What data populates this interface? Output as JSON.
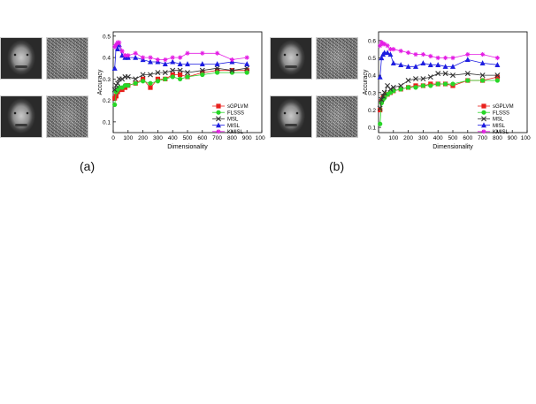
{
  "panels": [
    {
      "label": "(a)"
    },
    {
      "label": "(b)"
    }
  ],
  "colors": {
    "sGPLVM": "#e8201c",
    "FLSSS": "#27d627",
    "MSL": "#333333",
    "MISL": "#1d1de0",
    "KMISL": "#e41ee4"
  },
  "chart_data": [
    {
      "type": "line",
      "xlabel": "Dimensionality",
      "ylabel": "Accuracy",
      "xlim": [
        0,
        1000
      ],
      "ylim": [
        0.05,
        0.52
      ],
      "xticks": [
        0,
        100,
        200,
        300,
        400,
        500,
        600,
        700,
        800,
        900,
        1000
      ],
      "yticks": [
        0.1,
        0.2,
        0.3,
        0.4,
        0.5
      ],
      "legend_position": "right-bottom",
      "series": [
        {
          "name": "sGPLVM",
          "marker": "square",
          "x": [
            10,
            20,
            30,
            40,
            60,
            80,
            100,
            150,
            200,
            250,
            300,
            350,
            400,
            450,
            500,
            600,
            700,
            800,
            900
          ],
          "y": [
            0.21,
            0.22,
            0.24,
            0.25,
            0.25,
            0.26,
            0.27,
            0.28,
            0.3,
            0.26,
            0.3,
            0.3,
            0.32,
            0.32,
            0.31,
            0.33,
            0.34,
            0.34,
            0.34
          ]
        },
        {
          "name": "FLSSS",
          "marker": "circle",
          "x": [
            10,
            20,
            30,
            40,
            60,
            80,
            100,
            150,
            200,
            250,
            300,
            350,
            400,
            450,
            500,
            600,
            700,
            800,
            900
          ],
          "y": [
            0.18,
            0.24,
            0.25,
            0.26,
            0.26,
            0.27,
            0.27,
            0.28,
            0.29,
            0.28,
            0.29,
            0.3,
            0.31,
            0.3,
            0.31,
            0.32,
            0.33,
            0.33,
            0.33
          ]
        },
        {
          "name": "MSL",
          "marker": "x",
          "x": [
            10,
            20,
            30,
            40,
            60,
            80,
            100,
            150,
            200,
            250,
            300,
            350,
            400,
            450,
            500,
            600,
            700,
            800,
            900
          ],
          "y": [
            0.25,
            0.27,
            0.28,
            0.3,
            0.3,
            0.31,
            0.31,
            0.3,
            0.32,
            0.32,
            0.33,
            0.33,
            0.34,
            0.34,
            0.33,
            0.34,
            0.35,
            0.34,
            0.35
          ]
        },
        {
          "name": "MISL",
          "marker": "triangle",
          "x": [
            10,
            20,
            30,
            40,
            60,
            80,
            100,
            150,
            200,
            250,
            300,
            350,
            400,
            450,
            500,
            600,
            700,
            800,
            900
          ],
          "y": [
            0.35,
            0.46,
            0.44,
            0.46,
            0.41,
            0.4,
            0.4,
            0.4,
            0.39,
            0.38,
            0.38,
            0.37,
            0.38,
            0.37,
            0.37,
            0.37,
            0.37,
            0.38,
            0.37
          ]
        },
        {
          "name": "KMISL",
          "marker": "star",
          "x": [
            10,
            20,
            30,
            40,
            60,
            80,
            100,
            150,
            200,
            250,
            300,
            350,
            400,
            450,
            500,
            600,
            700,
            800,
            900
          ],
          "y": [
            0.45,
            0.46,
            0.47,
            0.47,
            0.43,
            0.41,
            0.41,
            0.42,
            0.4,
            0.4,
            0.39,
            0.39,
            0.4,
            0.4,
            0.42,
            0.42,
            0.42,
            0.39,
            0.4
          ]
        }
      ]
    },
    {
      "type": "line",
      "xlabel": "Dimensionality",
      "ylabel": "Accuracy",
      "xlim": [
        0,
        1000
      ],
      "ylim": [
        0.07,
        0.65
      ],
      "xticks": [
        0,
        100,
        200,
        300,
        400,
        500,
        600,
        700,
        800,
        900,
        1000
      ],
      "yticks": [
        0.1,
        0.2,
        0.3,
        0.4,
        0.5,
        0.6
      ],
      "legend_position": "right-bottom",
      "series": [
        {
          "name": "sGPLVM",
          "marker": "square",
          "x": [
            10,
            20,
            30,
            40,
            60,
            80,
            100,
            150,
            200,
            250,
            300,
            350,
            400,
            450,
            500,
            600,
            700,
            800
          ],
          "y": [
            0.2,
            0.25,
            0.27,
            0.28,
            0.29,
            0.3,
            0.31,
            0.32,
            0.33,
            0.34,
            0.34,
            0.35,
            0.35,
            0.35,
            0.34,
            0.37,
            0.37,
            0.39
          ]
        },
        {
          "name": "FLSSS",
          "marker": "circle",
          "x": [
            10,
            20,
            30,
            40,
            60,
            80,
            100,
            150,
            200,
            250,
            300,
            350,
            400,
            450,
            500,
            600,
            700,
            800
          ],
          "y": [
            0.12,
            0.24,
            0.26,
            0.27,
            0.29,
            0.3,
            0.31,
            0.32,
            0.33,
            0.33,
            0.34,
            0.34,
            0.35,
            0.35,
            0.35,
            0.37,
            0.37,
            0.37
          ]
        },
        {
          "name": "MSL",
          "marker": "x",
          "x": [
            10,
            20,
            30,
            40,
            60,
            80,
            100,
            150,
            200,
            250,
            300,
            350,
            400,
            450,
            500,
            600,
            700,
            800
          ],
          "y": [
            0.21,
            0.26,
            0.28,
            0.3,
            0.34,
            0.32,
            0.33,
            0.34,
            0.37,
            0.38,
            0.38,
            0.39,
            0.41,
            0.41,
            0.4,
            0.41,
            0.4,
            0.4
          ]
        },
        {
          "name": "MISL",
          "marker": "triangle",
          "x": [
            10,
            20,
            30,
            40,
            60,
            80,
            100,
            150,
            200,
            250,
            300,
            350,
            400,
            450,
            500,
            600,
            700,
            800
          ],
          "y": [
            0.39,
            0.5,
            0.52,
            0.53,
            0.53,
            0.52,
            0.47,
            0.46,
            0.45,
            0.45,
            0.47,
            0.46,
            0.46,
            0.45,
            0.45,
            0.49,
            0.47,
            0.46
          ]
        },
        {
          "name": "KMISL",
          "marker": "star",
          "x": [
            10,
            20,
            30,
            40,
            60,
            80,
            100,
            150,
            200,
            250,
            300,
            350,
            400,
            450,
            500,
            600,
            700,
            800
          ],
          "y": [
            0.57,
            0.59,
            0.58,
            0.58,
            0.57,
            0.55,
            0.55,
            0.54,
            0.53,
            0.52,
            0.52,
            0.51,
            0.5,
            0.5,
            0.5,
            0.52,
            0.52,
            0.5
          ]
        }
      ]
    }
  ]
}
